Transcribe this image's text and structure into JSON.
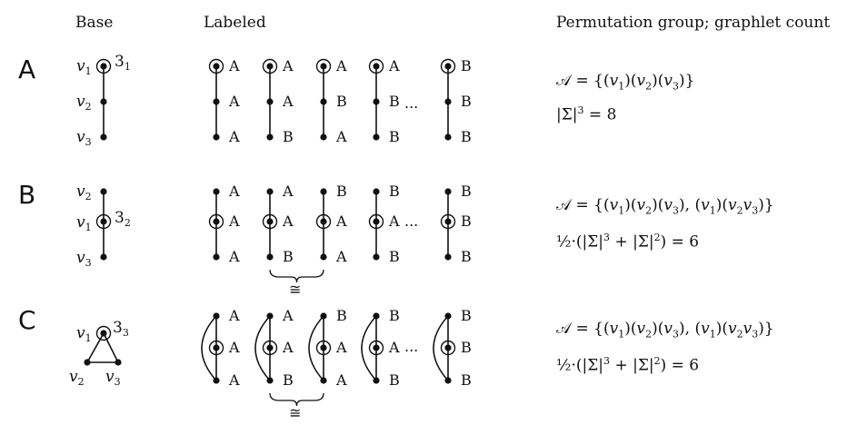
{
  "headers": {
    "base": "Base",
    "labeled": "Labeled",
    "perm": "Permutation group; graphlet count"
  },
  "rows": [
    {
      "id": "A",
      "label": "A",
      "base_vertices": [
        "v1",
        "v2",
        "v3"
      ],
      "orbit_label": "31",
      "group": "𝒜 = {(v1)(v2)(v3)}",
      "count": "|Σ|^3 = 8",
      "labelings": [
        [
          "A",
          "A",
          "A"
        ],
        [
          "A",
          "A",
          "B"
        ],
        [
          "A",
          "B",
          "A"
        ],
        [
          "A",
          "B",
          "B"
        ],
        [
          "B",
          "B",
          "B"
        ]
      ]
    },
    {
      "id": "B",
      "label": "B",
      "base_vertices": [
        "v2",
        "v1",
        "v3"
      ],
      "orbit_label": "32",
      "group": "𝒜 = {(v1)(v2)(v3), (v1)(v2v3)}",
      "count": "½·(|Σ|^3 + |Σ|^2) = 6",
      "labelings": [
        [
          "A",
          "A",
          "A"
        ],
        [
          "A",
          "A",
          "B"
        ],
        [
          "B",
          "A",
          "A"
        ],
        [
          "B",
          "A",
          "B"
        ],
        [
          "B",
          "B",
          "B"
        ]
      ],
      "iso_symbol": "≅"
    },
    {
      "id": "C",
      "label": "C",
      "base_vertices": [
        "v1",
        "v2",
        "v3"
      ],
      "orbit_label": "33",
      "group": "𝒜 = {(v1)(v2)(v3), (v1)(v2v3)}",
      "count": "½·(|Σ|^3 + |Σ|^2) = 6",
      "labelings": [
        [
          "A",
          "A",
          "A"
        ],
        [
          "A",
          "A",
          "B"
        ],
        [
          "B",
          "A",
          "A"
        ],
        [
          "B",
          "A",
          "B"
        ],
        [
          "B",
          "B",
          "B"
        ]
      ],
      "iso_symbol": "≅"
    }
  ],
  "ellipsis": "..."
}
